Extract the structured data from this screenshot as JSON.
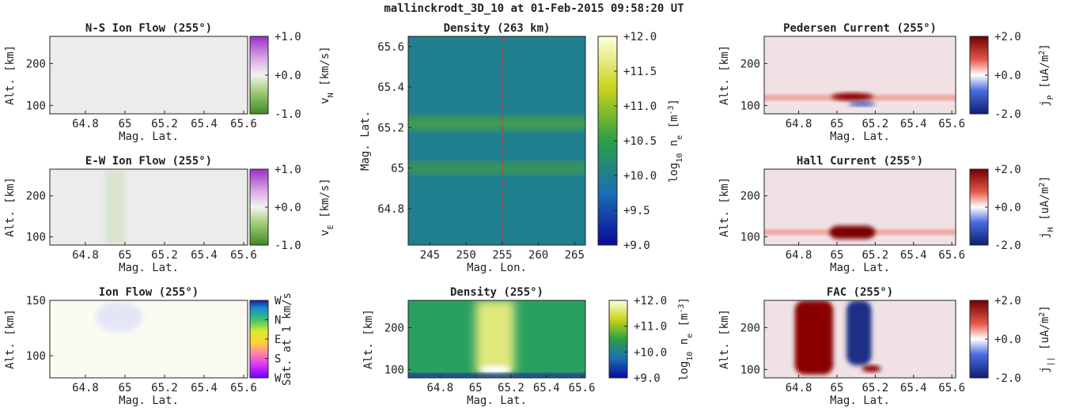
{
  "suptitle": "mallinckrodt_3D_10 at 01-Feb-2015 09:58:20 UT",
  "chart_data": [
    {
      "id": "ns-ion-flow",
      "type": "heatmap",
      "title": "N-S Ion Flow (255°)",
      "xlabel": "Mag. Lat.",
      "ylabel": "Alt. [km]",
      "xlim": [
        64.62,
        65.62
      ],
      "ylim": [
        80,
        265
      ],
      "xticks": [
        "64.8",
        "65",
        "65.2",
        "65.4",
        "65.6"
      ],
      "xtick_values": [
        64.8,
        65.0,
        65.2,
        65.4,
        65.6
      ],
      "yticks": [
        "100",
        "200"
      ],
      "ytick_values": [
        100,
        200
      ],
      "colormap": "diverging-green-purple",
      "colorbar": {
        "label": "vN [km/s]",
        "label_main": "v",
        "label_sub": "N",
        "label_unit": " [km/s]",
        "ticks": [
          "+1.0",
          "+0.0",
          "-1.0"
        ],
        "range": [
          -1.0,
          1.0
        ]
      },
      "fill_color": "#ececec"
    },
    {
      "id": "ew-ion-flow",
      "type": "heatmap",
      "title": "E-W Ion Flow (255°)",
      "xlabel": "Mag. Lat.",
      "ylabel": "Alt. [km]",
      "xlim": [
        64.62,
        65.62
      ],
      "ylim": [
        80,
        265
      ],
      "xticks": [
        "64.8",
        "65",
        "65.2",
        "65.4",
        "65.6"
      ],
      "xtick_values": [
        64.8,
        65.0,
        65.2,
        65.4,
        65.6
      ],
      "yticks": [
        "100",
        "200"
      ],
      "ytick_values": [
        100,
        200
      ],
      "colormap": "diverging-green-purple",
      "colorbar": {
        "label": "vE [km/s]",
        "label_main": "v",
        "label_sub": "E",
        "label_unit": " [km/s]",
        "ticks": [
          "+1.0",
          "+0.0",
          "-1.0"
        ],
        "range": [
          -1.0,
          1.0
        ]
      },
      "fill_color": "#ececec",
      "features": [
        {
          "shape": "band",
          "color": "#b8d8a0",
          "opacity": 0.35,
          "x0": 64.9,
          "x1": 65.0,
          "y0": 80,
          "y1": 265
        }
      ]
    },
    {
      "id": "ion-flow",
      "type": "heatmap",
      "title": "Ion Flow (255°)",
      "xlabel": "Mag. Lat.",
      "ylabel": "Alt. [km]",
      "xlim": [
        64.62,
        65.62
      ],
      "ylim": [
        80,
        150
      ],
      "xticks": [
        "64.8",
        "65",
        "65.2",
        "65.4",
        "65.6"
      ],
      "xtick_values": [
        64.8,
        65.0,
        65.2,
        65.4,
        65.6
      ],
      "yticks": [
        "100",
        "150"
      ],
      "ytick_values": [
        100,
        150
      ],
      "colormap": "cyclic-direction",
      "colorbar": {
        "label": "Sat. at 1 km/s",
        "ticks": [
          "W",
          "N",
          "E",
          "S",
          "W"
        ]
      },
      "fill_color": "#fbfbf2",
      "features": [
        {
          "shape": "ellipse",
          "color": "#d0d8f8",
          "opacity": 0.55,
          "cx": 64.97,
          "cy": 135,
          "rx": 0.12,
          "ry": 14
        }
      ]
    },
    {
      "id": "density-263km",
      "type": "heatmap",
      "title": "Density (263 km)",
      "xlabel": "Mag. Lon.",
      "ylabel": "Mag. Lat.",
      "xlim": [
        242,
        266.5
      ],
      "ylim": [
        64.62,
        65.65
      ],
      "xticks": [
        "245",
        "250",
        "255",
        "260",
        "265"
      ],
      "xtick_values": [
        245,
        250,
        255,
        260,
        265
      ],
      "yticks": [
        "64.8",
        "65",
        "65.2",
        "65.4",
        "65.6"
      ],
      "ytick_values": [
        64.8,
        65.0,
        65.2,
        65.4,
        65.6
      ],
      "colormap": "blue-green-yellow",
      "colorbar": {
        "label": "log10 ne [m-3]",
        "label_main": "log",
        "label_sub": "10",
        "label_mid": " n",
        "label_sub2": "e",
        "label_unit": " [m",
        "label_sup": "-3",
        "label_end": "]",
        "ticks": [
          "+12.0",
          "+11.5",
          "+11.0",
          "+10.5",
          "+10.0",
          "+9.5",
          "+9.0"
        ],
        "range": [
          9.0,
          12.0
        ]
      },
      "fill_color": "#207f8e",
      "bands": [
        {
          "center": 65.22,
          "width": 0.05,
          "color": "#4da53a"
        },
        {
          "center": 65.0,
          "width": 0.04,
          "color": "#44a040"
        }
      ],
      "marker_line": {
        "x": 255,
        "color": "#d03030",
        "style": "dashed"
      }
    },
    {
      "id": "density-255",
      "type": "heatmap",
      "title": "Density (255°)",
      "xlabel": "Mag. Lat.",
      "ylabel": "Alt. [km]",
      "xlim": [
        64.62,
        65.62
      ],
      "ylim": [
        80,
        265
      ],
      "xticks": [
        "64.8",
        "65",
        "65.2",
        "65.4",
        "65.6"
      ],
      "xtick_values": [
        64.8,
        65.0,
        65.2,
        65.4,
        65.6
      ],
      "yticks": [
        "100",
        "200"
      ],
      "ytick_values": [
        100,
        200
      ],
      "colormap": "blue-green-yellow",
      "colorbar": {
        "label": "log10 ne [m-3]",
        "label_main": "log",
        "label_sub": "10",
        "label_mid": " n",
        "label_sub2": "e",
        "label_unit": " [m",
        "label_sup": "-3",
        "label_end": "]",
        "ticks": [
          "+12.0",
          "+11.0",
          "+10.0",
          "+9.0"
        ],
        "range": [
          9.0,
          12.0
        ]
      },
      "fill_color": "#2aa060",
      "features": [
        {
          "shape": "plume",
          "color": "#f4f080",
          "opacity": 0.9,
          "x0": 65.0,
          "x1": 65.22,
          "y0": 90,
          "y1": 265
        },
        {
          "shape": "ellipse",
          "color": "#ffffff",
          "opacity": 1.0,
          "cx": 65.11,
          "cy": 100,
          "rx": 0.09,
          "ry": 10
        },
        {
          "shape": "band",
          "color": "#1c2c9a",
          "opacity": 1.0,
          "x0": 64.62,
          "x1": 65.62,
          "y0": 80,
          "y1": 90
        }
      ]
    },
    {
      "id": "pedersen-current",
      "type": "heatmap",
      "title": "Pedersen Current (255°)",
      "xlabel": "Mag. Lat.",
      "ylabel": "Alt. [km]",
      "xlim": [
        64.62,
        65.62
      ],
      "ylim": [
        80,
        265
      ],
      "xticks": [
        "64.8",
        "65",
        "65.2",
        "65.4",
        "65.6"
      ],
      "xtick_values": [
        64.8,
        65.0,
        65.2,
        65.4,
        65.6
      ],
      "yticks": [
        "100",
        "200"
      ],
      "ytick_values": [
        100,
        200
      ],
      "colormap": "diverging-blue-red",
      "colorbar": {
        "label": "jP [uA/m2]",
        "label_main": "j",
        "label_sub": "P",
        "label_unit": " [uA/m",
        "label_sup": "2",
        "label_end": "]",
        "ticks": [
          "+2.0",
          "+0.0",
          "-2.0"
        ],
        "range": [
          -2.0,
          2.0
        ]
      },
      "fill_color": "#efe1e4",
      "features": [
        {
          "shape": "band",
          "color": "#f08a7a",
          "opacity": 0.9,
          "x0": 64.62,
          "x1": 65.62,
          "y0": 113,
          "y1": 124
        },
        {
          "shape": "ellipse",
          "color": "#8a0000",
          "opacity": 1.0,
          "cx": 65.08,
          "cy": 121,
          "rx": 0.11,
          "ry": 9
        },
        {
          "shape": "ellipse",
          "color": "#2a3fb4",
          "opacity": 1.0,
          "cx": 65.13,
          "cy": 104,
          "rx": 0.07,
          "ry": 5
        }
      ]
    },
    {
      "id": "hall-current",
      "type": "heatmap",
      "title": "Hall Current (255°)",
      "xlabel": "Mag. Lat.",
      "ylabel": "Alt. [km]",
      "xlim": [
        64.62,
        65.62
      ],
      "ylim": [
        80,
        265
      ],
      "xticks": [
        "64.8",
        "65",
        "65.2",
        "65.4",
        "65.6"
      ],
      "xtick_values": [
        64.8,
        65.0,
        65.2,
        65.4,
        65.6
      ],
      "yticks": [
        "100",
        "200"
      ],
      "ytick_values": [
        100,
        200
      ],
      "colormap": "diverging-blue-red",
      "colorbar": {
        "label": "jH [uA/m2]",
        "label_main": "j",
        "label_sub": "H",
        "label_unit": " [uA/m",
        "label_sup": "2",
        "label_end": "]",
        "ticks": [
          "+2.0",
          "+0.0",
          "-2.0"
        ],
        "range": [
          -2.0,
          2.0
        ]
      },
      "fill_color": "#efe1e4",
      "features": [
        {
          "shape": "band",
          "color": "#f08a7a",
          "opacity": 0.9,
          "x0": 64.62,
          "x1": 65.62,
          "y0": 106,
          "y1": 117
        },
        {
          "shape": "blob",
          "color": "#7a0000",
          "opacity": 1.0,
          "x0": 64.96,
          "x1": 65.2,
          "y0": 95,
          "y1": 127
        }
      ]
    },
    {
      "id": "fac",
      "type": "heatmap",
      "title": "FAC (255°)",
      "xlabel": "Mag. Lat.",
      "ylabel": "Alt. [km]",
      "xlim": [
        64.62,
        65.62
      ],
      "ylim": [
        80,
        265
      ],
      "xticks": [
        "64.8",
        "65",
        "65.2",
        "65.4",
        "65.6"
      ],
      "xtick_values": [
        64.8,
        65.0,
        65.2,
        65.4,
        65.6
      ],
      "yticks": [
        "100",
        "200"
      ],
      "ytick_values": [
        100,
        200
      ],
      "colormap": "diverging-blue-red",
      "colorbar": {
        "label": "j|| [uA/m2]",
        "label_main": "j",
        "label_sub": "||",
        "label_unit": " [uA/m",
        "label_sup": "2",
        "label_end": "]",
        "ticks": [
          "+2.0",
          "+0.0",
          "-2.0"
        ],
        "range": [
          -2.0,
          2.0
        ]
      },
      "fill_color": "#efe1e4",
      "features": [
        {
          "shape": "column",
          "color": "#8a0000",
          "opacity": 1.0,
          "x0": 64.78,
          "x1": 64.98,
          "y0": 88,
          "y1": 265
        },
        {
          "shape": "column",
          "color": "#1a2f86",
          "opacity": 1.0,
          "x0": 65.05,
          "x1": 65.18,
          "y0": 110,
          "y1": 265
        },
        {
          "shape": "ellipse",
          "color": "#8a0000",
          "opacity": 1.0,
          "cx": 65.18,
          "cy": 102,
          "rx": 0.05,
          "ry": 8
        }
      ]
    }
  ]
}
